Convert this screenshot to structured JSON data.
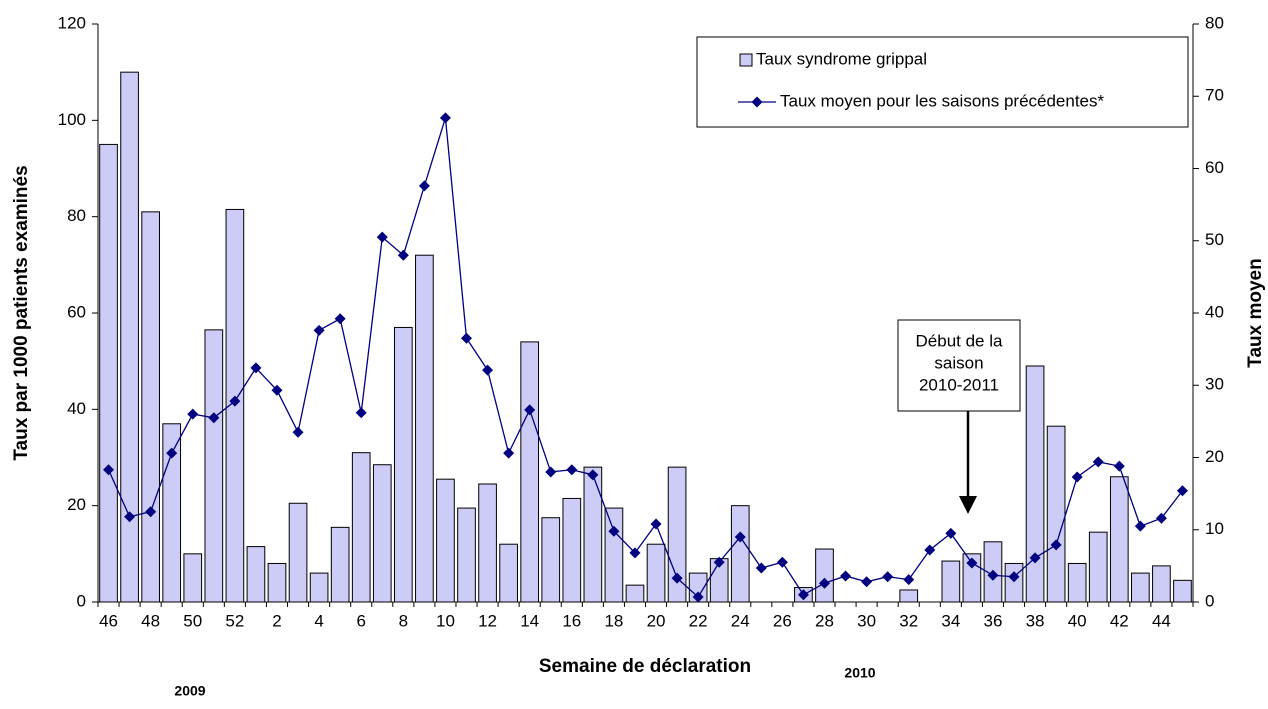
{
  "chart_data": {
    "type": "bar_line",
    "x_label": "Semaine de déclaration",
    "y_label": "Taux par 1000 patients examinés",
    "y2_label": "Taux moyen",
    "year_labels": [
      "2009",
      "2010"
    ],
    "annotation": [
      "Début de la",
      "saison",
      "2010-2011"
    ],
    "categories": [
      "46",
      null,
      "48",
      null,
      "50",
      null,
      "52",
      null,
      "2",
      null,
      "4",
      null,
      "6",
      null,
      "8",
      null,
      "10",
      null,
      "12",
      null,
      "14",
      null,
      "16",
      null,
      "18",
      null,
      "20",
      null,
      "22",
      null,
      "24",
      null,
      "26",
      null,
      "28",
      null,
      "30",
      null,
      "32",
      null,
      "34",
      null,
      "36",
      null,
      "38",
      null,
      "40",
      null,
      "42",
      null,
      "44",
      null
    ],
    "series": [
      {
        "name": "Taux syndrome grippal",
        "kind": "bar",
        "color": "#ccccf6",
        "values": [
          95,
          110,
          81,
          37,
          10,
          56.5,
          81.5,
          11.5,
          8,
          20.5,
          6,
          15.5,
          31,
          28.5,
          57,
          72,
          25.5,
          19.5,
          24.5,
          12,
          54,
          17.5,
          21.5,
          28,
          19.5,
          3.5,
          12,
          28,
          6,
          9,
          20,
          0,
          0,
          3,
          11,
          0,
          0,
          0,
          2.5,
          0,
          8.5,
          10,
          12.5,
          8,
          49,
          36.5,
          8,
          14.5,
          26,
          6,
          7.5,
          4.5
        ]
      },
      {
        "name": "Taux moyen pour les saisons précédentes*",
        "kind": "line",
        "axis": "y2",
        "color": "#000080",
        "values": [
          18.3,
          11.8,
          12.5,
          20.6,
          26,
          25.5,
          27.8,
          32.4,
          29.3,
          23.5,
          37.6,
          39.2,
          26.2,
          50.5,
          48,
          57.6,
          67,
          36.5,
          32.1,
          20.6,
          26.6,
          18,
          18.3,
          17.6,
          9.8,
          6.8,
          10.8,
          3.3,
          0.7,
          5.5,
          9,
          4.7,
          5.5,
          1,
          2.6,
          3.6,
          2.8,
          3.5,
          3.1,
          7.2,
          9.5,
          5.4,
          3.7,
          3.5,
          6.1,
          7.9,
          17.3,
          19.4,
          18.8,
          10.5,
          11.6,
          15.4
        ]
      }
    ],
    "ylim": [
      0,
      120
    ],
    "yticks": [
      0,
      20,
      40,
      60,
      80,
      100,
      120
    ],
    "y2lim": [
      0,
      80
    ],
    "y2ticks": [
      0,
      10,
      20,
      30,
      40,
      50,
      60,
      70,
      80
    ],
    "grid": false,
    "legend": "upper right"
  }
}
